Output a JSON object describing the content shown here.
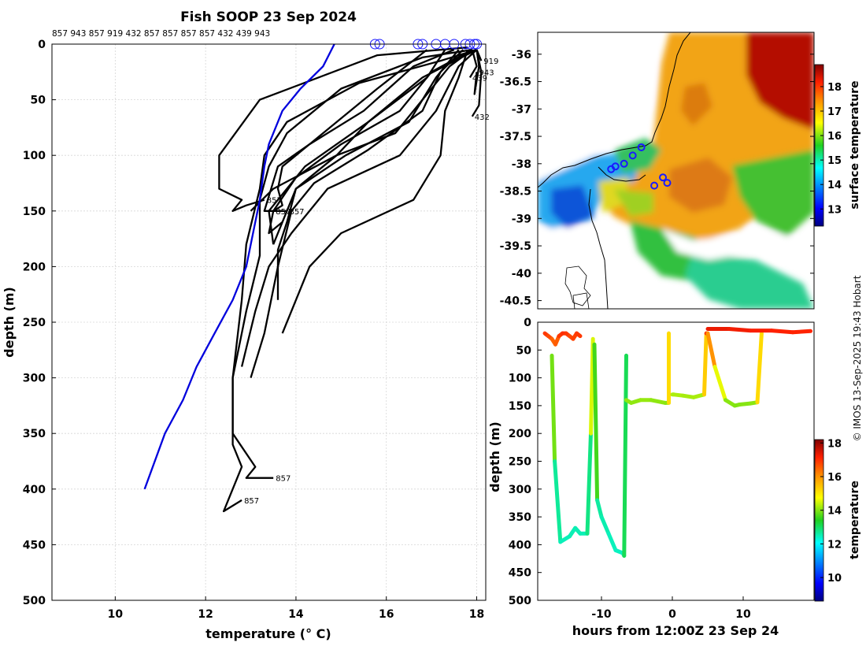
{
  "figure_credit": "© IMOS 13-Sep-2025 19:43 Hobart",
  "chart_data": [
    {
      "id": "profiles",
      "type": "line",
      "title": "Fish SOOP 23 Sep 2024",
      "xlabel": "temperature (° C)",
      "ylabel": "depth (m)",
      "xlim": [
        8.6,
        18.2
      ],
      "ylim": [
        0,
        500
      ],
      "y_inverted": true,
      "grid": true,
      "xticks": [
        10,
        12,
        14,
        16,
        18
      ],
      "yticks": [
        0,
        50,
        100,
        150,
        200,
        250,
        300,
        350,
        400,
        450,
        500
      ],
      "top_labels": "857 943 857 919 432 857 857 857 857 432 439 943",
      "climatology": {
        "name": "climatology",
        "color": "#0000dd",
        "x": [
          14.85,
          14.6,
          14.1,
          13.7,
          13.4,
          13.3,
          13.2,
          13.05,
          12.9,
          12.6,
          12.2,
          11.8,
          11.5,
          11.1,
          10.65
        ],
        "y": [
          0,
          20,
          40,
          60,
          90,
          110,
          140,
          170,
          200,
          230,
          260,
          290,
          320,
          350,
          400
        ]
      },
      "series": [
        {
          "name": "857",
          "x": [
            18.0,
            17.2,
            15.4,
            13.8,
            13.3,
            13.2,
            12.9,
            12.8,
            12.6,
            12.6,
            12.8,
            12.4,
            12.8
          ],
          "y": [
            5,
            15,
            35,
            70,
            100,
            130,
            180,
            230,
            300,
            360,
            380,
            420,
            410
          ],
          "end_label": "857"
        },
        {
          "name": "857",
          "x": [
            17.9,
            16.8,
            15.0,
            13.8,
            13.4,
            13.2,
            13.2,
            12.9,
            12.6,
            12.6,
            13.1,
            12.9,
            13.5
          ],
          "y": [
            5,
            12,
            40,
            80,
            110,
            140,
            190,
            240,
            300,
            350,
            380,
            390,
            390
          ],
          "end_label": "857"
        },
        {
          "name": "857",
          "x": [
            17.8,
            15.8,
            13.2,
            12.3,
            12.3,
            12.8,
            12.6,
            12.9,
            13.3
          ],
          "y": [
            3,
            10,
            50,
            100,
            130,
            140,
            150,
            145,
            140
          ],
          "end_label": "857"
        },
        {
          "name": "857",
          "x": [
            17.5,
            16.6,
            15.5,
            14.3,
            13.6,
            13.3,
            13.8
          ],
          "y": [
            5,
            20,
            60,
            90,
            110,
            150,
            150
          ],
          "end_label": "857"
        },
        {
          "name": "943",
          "x": [
            17.9,
            17.0,
            16.3,
            15.0,
            14.0,
            13.5,
            13.4,
            13.7
          ],
          "y": [
            5,
            25,
            60,
            90,
            120,
            150,
            170,
            160
          ]
        },
        {
          "name": "919",
          "x": [
            18.0,
            16.8,
            15.6,
            14.2,
            13.4,
            13.5
          ],
          "y": [
            5,
            30,
            70,
            110,
            150,
            180
          ]
        },
        {
          "name": "432",
          "x": [
            17.6,
            17.1,
            16.5,
            15.1,
            14.0,
            13.8,
            13.6,
            13.6
          ],
          "y": [
            5,
            30,
            70,
            100,
            130,
            160,
            185,
            230
          ]
        },
        {
          "name": "857",
          "x": [
            17.7,
            17.2,
            16.8,
            15.6,
            14.4,
            13.9,
            13.6,
            13.3,
            13.0
          ],
          "y": [
            5,
            25,
            60,
            95,
            125,
            150,
            200,
            260,
            300
          ]
        },
        {
          "name": "857",
          "x": [
            17.9,
            17.4,
            16.2,
            14.9,
            13.5,
            13.0
          ],
          "y": [
            5,
            20,
            80,
            100,
            130,
            150
          ]
        },
        {
          "name": "432",
          "x": [
            18.0,
            17.6,
            17.1,
            16.3,
            14.7,
            13.9,
            13.4,
            13.1,
            12.8
          ],
          "y": [
            5,
            20,
            60,
            100,
            130,
            170,
            200,
            240,
            290
          ]
        },
        {
          "name": "943",
          "x": [
            17.3,
            16.9,
            15.6,
            14.9,
            14.0,
            13.7,
            13.5
          ],
          "y": [
            5,
            30,
            70,
            100,
            130,
            160,
            180
          ]
        },
        {
          "name": "439",
          "x": [
            17.8,
            17.6,
            17.3,
            17.2,
            16.6,
            15.0,
            14.3,
            13.7
          ],
          "y": [
            5,
            30,
            60,
            100,
            140,
            170,
            200,
            260
          ]
        },
        {
          "name": "857",
          "x": [
            16.9,
            15.8,
            14.6,
            13.7,
            13.6,
            13.7,
            13.5
          ],
          "y": [
            5,
            40,
            80,
            110,
            130,
            145,
            150
          ],
          "end_label": "857"
        },
        {
          "name": "943",
          "x": [
            18.0,
            18.05,
            17.95,
            18.0
          ],
          "y": [
            5,
            20,
            45,
            25
          ],
          "end_label": "943"
        },
        {
          "name": "439",
          "x": [
            17.9,
            18.0,
            17.85
          ],
          "y": [
            5,
            20,
            30
          ],
          "end_label": "439"
        },
        {
          "name": "432",
          "x": [
            18.0,
            18.1,
            18.05,
            17.9
          ],
          "y": [
            5,
            25,
            55,
            65
          ],
          "end_label": "432"
        },
        {
          "name": "919",
          "x": [
            18.0,
            18.05,
            18.1
          ],
          "y": [
            5,
            10,
            15
          ],
          "end_label": "919"
        }
      ],
      "surface_markers": [
        15.75,
        15.85,
        16.7,
        16.8,
        17.1,
        17.3,
        17.5,
        17.75,
        17.85,
        17.95,
        18.0
      ]
    },
    {
      "id": "sst-map",
      "type": "heatmap",
      "colorbar_label": "surface temperature",
      "colorbar_ticks": [
        13,
        14,
        15,
        16,
        17,
        18
      ],
      "clim": [
        12.3,
        18.9
      ],
      "lat_ticks": [
        -36,
        -36.5,
        -37,
        -37.5,
        -38,
        -38.5,
        -39,
        -39.5,
        -40,
        -40.5
      ],
      "ylim": [
        -35.6,
        -40.65
      ],
      "station_lat_lon": [
        [
          -37.7,
          149.8
        ],
        [
          -37.85,
          149.6
        ],
        [
          -38.0,
          149.4
        ],
        [
          -38.05,
          149.2
        ],
        [
          -38.1,
          149.1
        ],
        [
          -38.25,
          150.3
        ],
        [
          -38.35,
          150.4
        ],
        [
          -38.4,
          150.1
        ]
      ]
    },
    {
      "id": "section",
      "type": "scatter",
      "xlabel": "hours from 12:00Z 23 Sep 24",
      "ylabel": "depth (m)",
      "colorbar_label": "temperature",
      "colorbar_ticks": [
        10,
        12,
        14,
        16,
        18
      ],
      "clim": [
        8.6,
        18.2
      ],
      "xlim": [
        -19,
        20
      ],
      "ylim": [
        0,
        500
      ],
      "y_inverted": true,
      "xticks": [
        -10,
        0,
        10
      ],
      "yticks": [
        0,
        50,
        100,
        150,
        200,
        250,
        300,
        350,
        400,
        450,
        500
      ],
      "casts": [
        {
          "t": [
            -18,
            -17.5,
            -17,
            -16.5,
            -16,
            -15.5,
            -15,
            -14.5,
            -14,
            -13.5,
            -13
          ],
          "depth": [
            20,
            25,
            30,
            40,
            25,
            20,
            20,
            25,
            30,
            20,
            25
          ]
        },
        {
          "t": [
            -17.0,
            -16.6,
            -15.8,
            -14.5,
            -13.7,
            -13.0,
            -12.0,
            -11.5,
            -11.2
          ],
          "depth": [
            60,
            250,
            395,
            385,
            370,
            380,
            380,
            200,
            30
          ]
        },
        {
          "t": [
            -11.0,
            -10.6,
            -10.0,
            -9.0,
            -8.0,
            -7.0,
            -6.8,
            -6.5
          ],
          "depth": [
            40,
            320,
            350,
            380,
            410,
            415,
            420,
            60
          ]
        },
        {
          "t": [
            -6.5,
            -5.8,
            -4.5,
            -3.0,
            -1.0,
            -0.5,
            -0.5
          ],
          "depth": [
            140,
            145,
            140,
            140,
            145,
            145,
            20
          ]
        },
        {
          "t": [
            0,
            0.2,
            1.5,
            3.0,
            4.5,
            4.8,
            5.0
          ],
          "depth": [
            130,
            130,
            132,
            135,
            130,
            20,
            20
          ]
        },
        {
          "t": [
            5.0,
            6.0,
            7.5,
            8.8,
            9.5,
            11.0,
            12.0,
            12.6
          ],
          "depth": [
            20,
            80,
            140,
            150,
            148,
            146,
            144,
            20
          ]
        },
        {
          "t": [
            5.0,
            8.0,
            11.0,
            14.0,
            17.0,
            19.5
          ],
          "depth": [
            12,
            12,
            15,
            15,
            18,
            16
          ]
        }
      ]
    }
  ]
}
